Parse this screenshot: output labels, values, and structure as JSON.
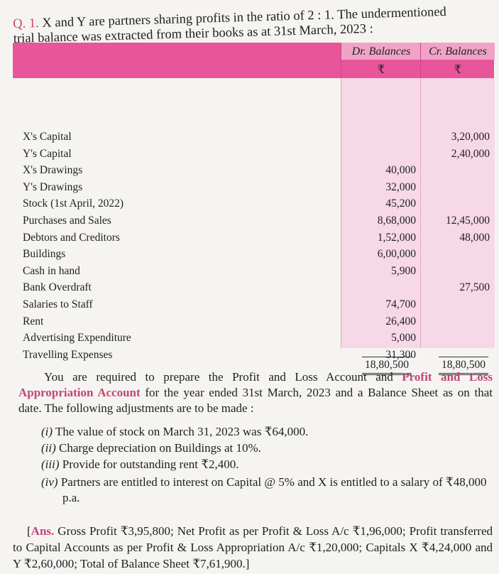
{
  "question": {
    "number": "Q. 1.",
    "text_line1": "X and Y are partners sharing profits in the ratio of 2 : 1. The undermentioned",
    "text_line2": "trial balance was extracted from their books as at 31st March, 2023 :"
  },
  "table": {
    "headers": {
      "dr": "Dr. Balances",
      "cr": "Cr. Balances",
      "currency": "₹"
    },
    "rows": [
      {
        "label": "X's Capital",
        "dr": "",
        "cr": "3,20,000"
      },
      {
        "label": "Y's Capital",
        "dr": "",
        "cr": "2,40,000"
      },
      {
        "label": "X's Drawings",
        "dr": "40,000",
        "cr": ""
      },
      {
        "label": "Y's Drawings",
        "dr": "32,000",
        "cr": ""
      },
      {
        "label": "Stock (1st April, 2022)",
        "dr": "45,200",
        "cr": ""
      },
      {
        "label": "Purchases and Sales",
        "dr": "8,68,000",
        "cr": "12,45,000"
      },
      {
        "label": "Debtors and Creditors",
        "dr": "1,52,000",
        "cr": "48,000"
      },
      {
        "label": "Buildings",
        "dr": "6,00,000",
        "cr": ""
      },
      {
        "label": "Cash in hand",
        "dr": "5,900",
        "cr": ""
      },
      {
        "label": "Bank Overdraft",
        "dr": "",
        "cr": "27,500"
      },
      {
        "label": "Salaries to Staff",
        "dr": "74,700",
        "cr": ""
      },
      {
        "label": "Rent",
        "dr": "26,400",
        "cr": ""
      },
      {
        "label": "Advertising Expenditure",
        "dr": "5,000",
        "cr": ""
      },
      {
        "label": "Travelling Expenses",
        "dr": "31,300",
        "cr": ""
      }
    ],
    "totals": {
      "dr": "18,80,500",
      "cr": "18,80,500"
    }
  },
  "instructions": {
    "part1": "You are required to prepare the Profit and Loss Account and ",
    "highlight1": "Profit and Loss Appropriation Account",
    "part2": " for the year ended 31st March, 2023 and a Balance Sheet as on that date. The following adjustments are to be made :"
  },
  "adjustments": [
    {
      "num": "(i)",
      "text": "The value of stock on March 31, 2023 was ₹64,000."
    },
    {
      "num": "(ii)",
      "text": "Charge depreciation on Buildings at 10%."
    },
    {
      "num": "(iii)",
      "text": "Provide for outstanding rent ₹2,400."
    },
    {
      "num": "(iv)",
      "text": "Partners are entitled to interest on Capital @ 5% and X is entitled to a salary of ₹48,000 p.a."
    }
  ],
  "answer": {
    "label": "Ans.",
    "text": "Gross Profit ₹3,95,800; Net Profit as per Profit & Loss A/c ₹1,96,000; Profit transferred to Capital Accounts as per Profit & Loss Appropriation A/c ₹1,20,000; Capitals X ₹4,24,000 and Y ₹2,60,000; Total of Balance Sheet ₹7,61,900.]"
  },
  "colors": {
    "accent": "#c0457a",
    "header_band": "#e8559a",
    "column_fill": "#f7d8e6"
  }
}
